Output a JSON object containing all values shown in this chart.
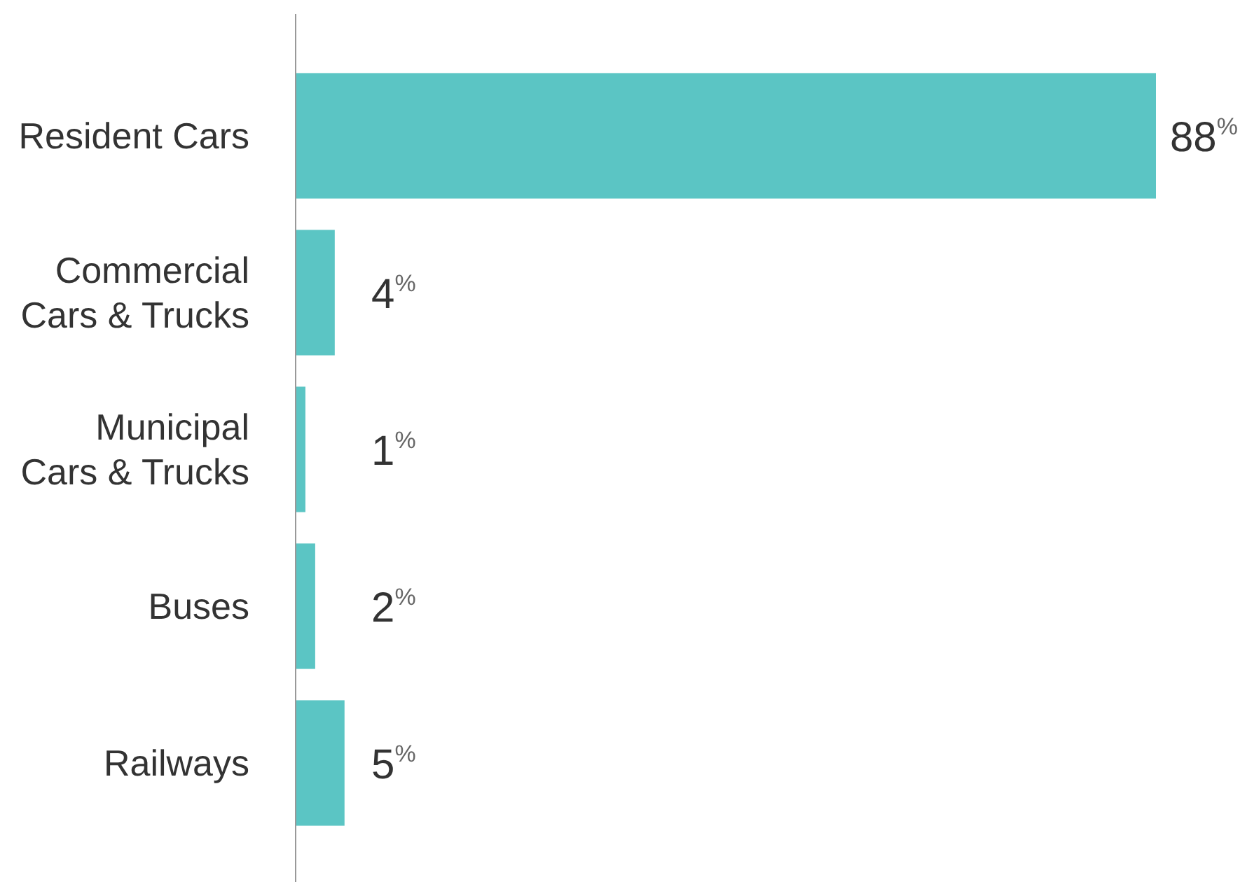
{
  "chart_data": {
    "type": "bar",
    "orientation": "horizontal",
    "categories": [
      "Resident Cars",
      "Commercial\nCars & Trucks",
      "Municipal\nCars & Trucks",
      "Buses",
      "Railways"
    ],
    "values": [
      88,
      4,
      1,
      2,
      5
    ],
    "color": "#5bc5c4",
    "xlim": [
      0,
      88
    ],
    "tick_labels": "y",
    "value_labels": [
      "88$^{%}$",
      "4$^{%}$",
      "1$^{%}$",
      "2$^{%}$",
      "5$^{%}$"
    ]
  }
}
